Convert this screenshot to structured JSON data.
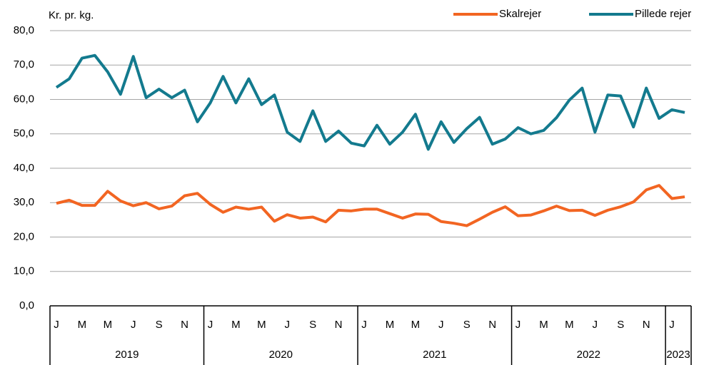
{
  "chart_data": {
    "type": "line",
    "ylabel": "Kr. pr. kg.",
    "categories": [
      "J",
      null,
      "M",
      null,
      "M",
      null,
      "J",
      null,
      "S",
      null,
      "N",
      null,
      "J",
      null,
      "M",
      null,
      "M",
      null,
      "J",
      null,
      "S",
      null,
      "N",
      null,
      "J",
      null,
      "M",
      null,
      "M",
      null,
      "J",
      null,
      "S",
      null,
      "N",
      null,
      "J",
      null,
      "M",
      null,
      "M",
      null,
      "J",
      null,
      "S",
      null,
      "N",
      null,
      "J",
      null
    ],
    "years": [
      "2019",
      "2020",
      "2021",
      "2022",
      "2023"
    ],
    "series": [
      {
        "name": "Skalrejer",
        "color": "#f26522",
        "values": [
          29.8,
          30.7,
          29.2,
          29.2,
          33.3,
          30.5,
          29.1,
          30,
          28.2,
          29,
          32,
          32.7,
          29.5,
          27.2,
          28.7,
          28.1,
          28.7,
          24.6,
          26.5,
          25.5,
          25.8,
          24.4,
          27.8,
          27.6,
          28.1,
          28.1,
          26.8,
          25.5,
          26.7,
          26.6,
          24.5,
          24,
          23.3,
          25.2,
          27.2,
          28.8,
          26.2,
          26.4,
          27.6,
          29,
          27.7,
          27.8,
          26.3,
          27.8,
          28.8,
          30.2,
          33.7,
          35,
          31.2,
          31.7
        ]
      },
      {
        "name": "Pillede rejer",
        "color": "#137a8e",
        "values": [
          63.5,
          66,
          72,
          72.8,
          68,
          61.5,
          72.5,
          60.5,
          63,
          60.5,
          62.7,
          53.5,
          59,
          66.7,
          59,
          66,
          58.5,
          61.3,
          50.5,
          47.8,
          56.7,
          47.8,
          50.8,
          47.3,
          46.5,
          52.5,
          47,
          50.5,
          55.7,
          45.5,
          53.5,
          47.5,
          51.5,
          54.8,
          47,
          48.5,
          51.8,
          50,
          51,
          54.7,
          59.8,
          63.3,
          50.5,
          61.3,
          61,
          52,
          63.3,
          54.5,
          57,
          56.2
        ]
      }
    ],
    "ylim": [
      0,
      80
    ],
    "yticks": [
      {
        "value": 0,
        "label": "0,0"
      },
      {
        "value": 10,
        "label": "10,0"
      },
      {
        "value": 20,
        "label": "20,0"
      },
      {
        "value": 30,
        "label": "30,0"
      },
      {
        "value": 40,
        "label": "40,0"
      },
      {
        "value": 50,
        "label": "50,0"
      },
      {
        "value": 60,
        "label": "60,0"
      },
      {
        "value": 70,
        "label": "70,0"
      },
      {
        "value": 80,
        "label": "80,0"
      }
    ],
    "grid": true,
    "legend": "top-right"
  }
}
